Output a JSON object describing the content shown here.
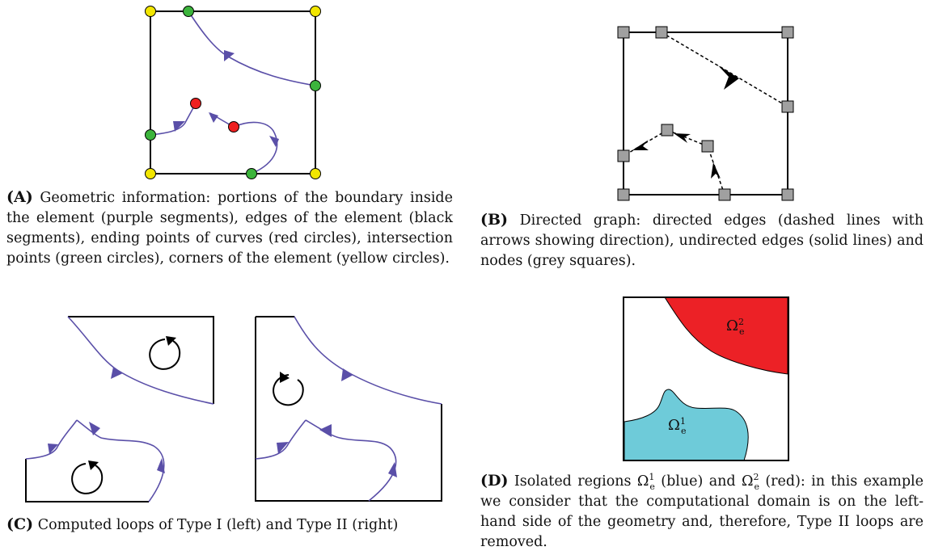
{
  "panels": {
    "A": {
      "label": "(A)",
      "caption": "Geometric information: portions of the boundary inside the element (purple segments), edges of the element (black segments), ending points of curves (red circles), intersection points (green circles), corners of the element (yellow circles)."
    },
    "B": {
      "label": "(B)",
      "caption": "Directed graph: directed edges (dashed lines with arrows showing direction), undirected edges (solid lines) and nodes (grey squares)."
    },
    "C": {
      "label": "(C)",
      "caption": "Computed loops of Type I (left) and Type II (right)"
    },
    "D": {
      "label": "(D)",
      "caption_pre": "Isolated regions ",
      "caption_mid1": " (blue) and ",
      "caption_post": " (red): in this example we consider that the computational domain is on the left-hand side of the geometry and, therefore, Type II loops are removed.",
      "omega_symbol": "Ω",
      "sub_e": "e",
      "sup_1": "1",
      "sup_2": "2"
    }
  },
  "colors": {
    "curve": "#5a4fa8",
    "edge": "#000000",
    "end_point": "#ee2020",
    "intersection": "#3cb43c",
    "corner": "#f2e600",
    "node": "#a0a0a0",
    "region_blue": "#6ecbd9",
    "region_red": "#ec2126"
  }
}
